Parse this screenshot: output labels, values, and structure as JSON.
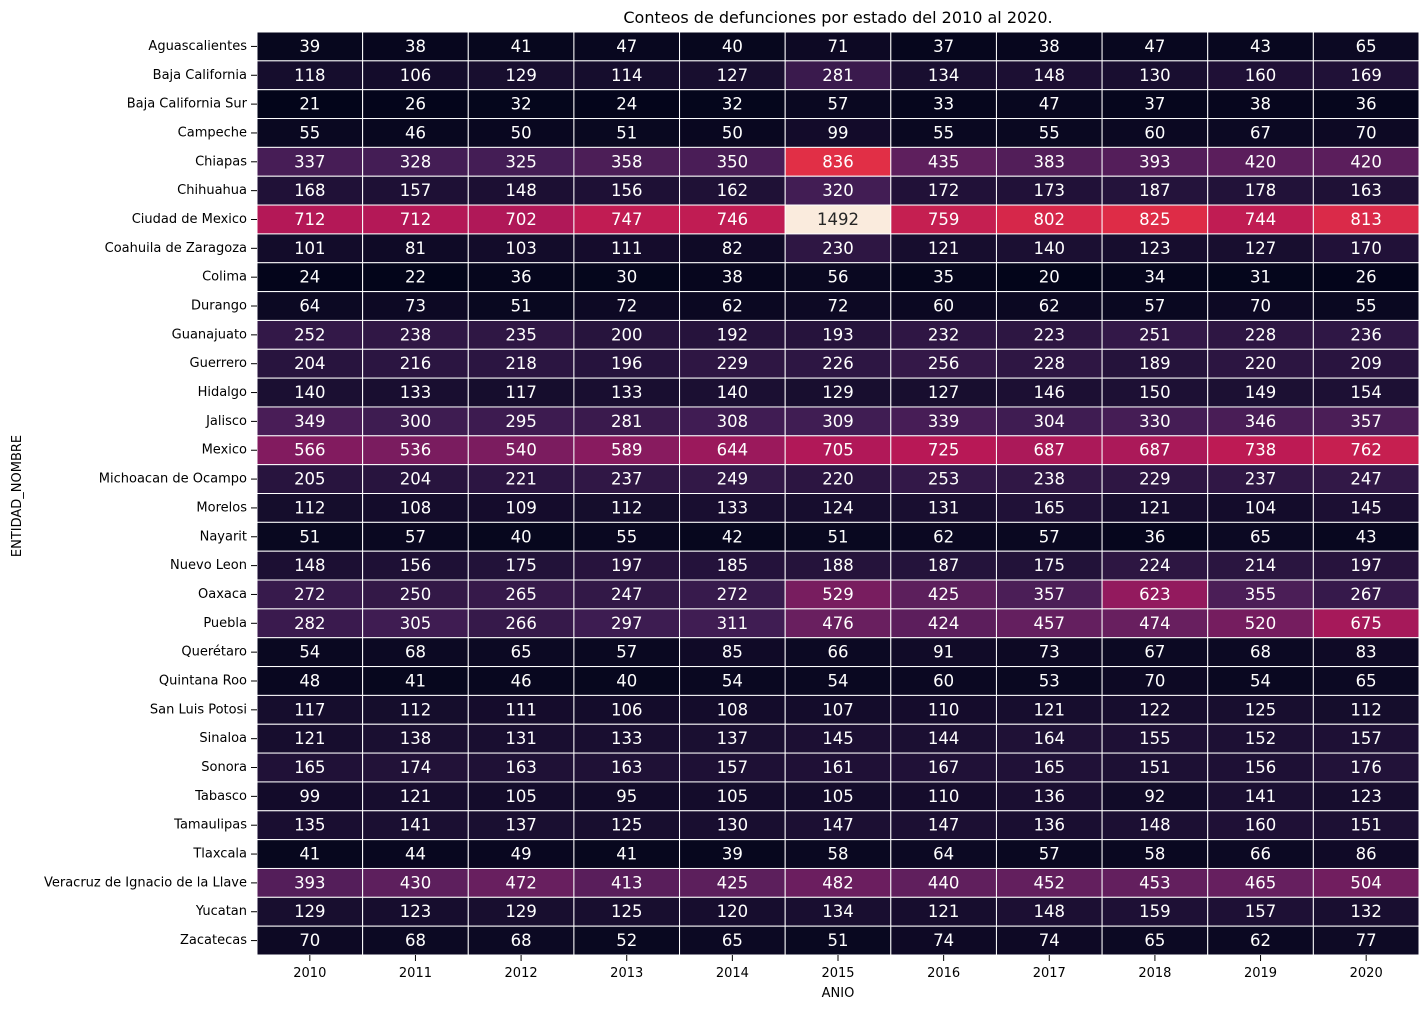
{
  "chart_data": {
    "type": "heatmap",
    "title": "Conteos de defunciones por estado del 2010 al 2020.",
    "xlabel": "ANIO",
    "ylabel": "ENTIDAD_NOMBRE",
    "colormap": "rocket",
    "color_range": [
      20,
      1492
    ],
    "colorbar": false,
    "x": [
      "2010",
      "2011",
      "2012",
      "2013",
      "2014",
      "2015",
      "2016",
      "2017",
      "2018",
      "2019",
      "2020"
    ],
    "y": [
      "Aguascalientes",
      "Baja California",
      "Baja California Sur",
      "Campeche",
      "Chiapas",
      "Chihuahua",
      "Ciudad de Mexico",
      "Coahuila de Zaragoza",
      "Colima",
      "Durango",
      "Guanajuato",
      "Guerrero",
      "Hidalgo",
      "Jalisco",
      "Mexico",
      "Michoacan de Ocampo",
      "Morelos",
      "Nayarit",
      "Nuevo Leon",
      "Oaxaca",
      "Puebla",
      "Querétaro",
      "Quintana Roo",
      "San Luis Potosi",
      "Sinaloa",
      "Sonora",
      "Tabasco",
      "Tamaulipas",
      "Tlaxcala",
      "Veracruz de Ignacio de la Llave",
      "Yucatan",
      "Zacatecas"
    ],
    "values": [
      [
        39,
        38,
        41,
        47,
        40,
        71,
        37,
        38,
        47,
        43,
        65
      ],
      [
        118,
        106,
        129,
        114,
        127,
        281,
        134,
        148,
        130,
        160,
        169
      ],
      [
        21,
        26,
        32,
        24,
        32,
        57,
        33,
        47,
        37,
        38,
        36
      ],
      [
        55,
        46,
        50,
        51,
        50,
        99,
        55,
        55,
        60,
        67,
        70
      ],
      [
        337,
        328,
        325,
        358,
        350,
        836,
        435,
        383,
        393,
        420,
        420
      ],
      [
        168,
        157,
        148,
        156,
        162,
        320,
        172,
        173,
        187,
        178,
        163
      ],
      [
        712,
        712,
        702,
        747,
        746,
        1492,
        759,
        802,
        825,
        744,
        813
      ],
      [
        101,
        81,
        103,
        111,
        82,
        230,
        121,
        140,
        123,
        127,
        170
      ],
      [
        24,
        22,
        36,
        30,
        38,
        56,
        35,
        20,
        34,
        31,
        26
      ],
      [
        64,
        73,
        51,
        72,
        62,
        72,
        60,
        62,
        57,
        70,
        55
      ],
      [
        252,
        238,
        235,
        200,
        192,
        193,
        232,
        223,
        251,
        228,
        236
      ],
      [
        204,
        216,
        218,
        196,
        229,
        226,
        256,
        228,
        189,
        220,
        209
      ],
      [
        140,
        133,
        117,
        133,
        140,
        129,
        127,
        146,
        150,
        149,
        154
      ],
      [
        349,
        300,
        295,
        281,
        308,
        309,
        339,
        304,
        330,
        346,
        357
      ],
      [
        566,
        536,
        540,
        589,
        644,
        705,
        725,
        687,
        687,
        738,
        762
      ],
      [
        205,
        204,
        221,
        237,
        249,
        220,
        253,
        238,
        229,
        237,
        247
      ],
      [
        112,
        108,
        109,
        112,
        133,
        124,
        131,
        165,
        121,
        104,
        145
      ],
      [
        51,
        57,
        40,
        55,
        42,
        51,
        62,
        57,
        36,
        65,
        43
      ],
      [
        148,
        156,
        175,
        197,
        185,
        188,
        187,
        175,
        224,
        214,
        197
      ],
      [
        272,
        250,
        265,
        247,
        272,
        529,
        425,
        357,
        623,
        355,
        267
      ],
      [
        282,
        305,
        266,
        297,
        311,
        476,
        424,
        457,
        474,
        520,
        675
      ],
      [
        54,
        68,
        65,
        57,
        85,
        66,
        91,
        73,
        67,
        68,
        83
      ],
      [
        48,
        41,
        46,
        40,
        54,
        54,
        60,
        53,
        70,
        54,
        65
      ],
      [
        117,
        112,
        111,
        106,
        108,
        107,
        110,
        121,
        122,
        125,
        112
      ],
      [
        121,
        138,
        131,
        133,
        137,
        145,
        144,
        164,
        155,
        152,
        157
      ],
      [
        165,
        174,
        163,
        163,
        157,
        161,
        167,
        165,
        151,
        156,
        176
      ],
      [
        99,
        121,
        105,
        95,
        105,
        105,
        110,
        136,
        92,
        141,
        123
      ],
      [
        135,
        141,
        137,
        125,
        130,
        147,
        147,
        136,
        148,
        160,
        151
      ],
      [
        41,
        44,
        49,
        41,
        39,
        58,
        64,
        57,
        58,
        66,
        86
      ],
      [
        393,
        430,
        472,
        413,
        425,
        482,
        440,
        452,
        453,
        465,
        504
      ],
      [
        129,
        123,
        129,
        125,
        120,
        134,
        121,
        148,
        159,
        157,
        132
      ],
      [
        70,
        68,
        68,
        52,
        65,
        51,
        74,
        74,
        65,
        62,
        77
      ]
    ]
  }
}
